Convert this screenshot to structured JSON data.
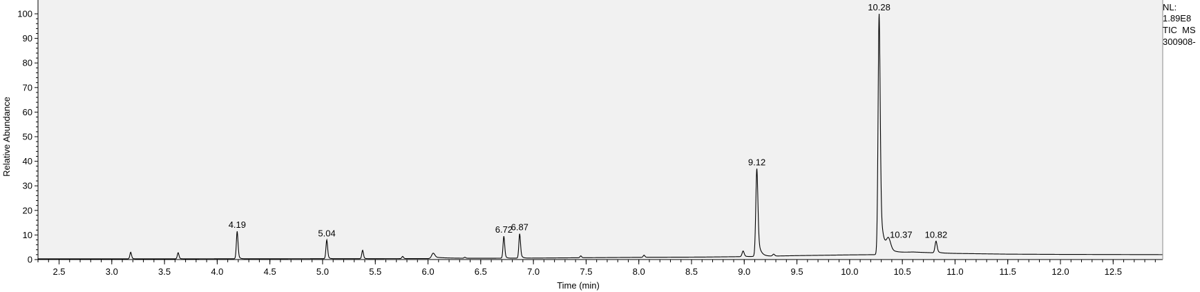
{
  "header": {
    "lines": [
      "NL:",
      "1.89E8",
      "TIC  MS",
      "300908-"
    ]
  },
  "chart_data": {
    "type": "line",
    "xlabel": "Time (min)",
    "ylabel": "Relative Abundance",
    "xlim": [
      2.3,
      12.97
    ],
    "ylim": [
      0,
      100
    ],
    "grid": false,
    "x_ticks": [
      "2.5",
      "3.0",
      "3.5",
      "4.0",
      "4.5",
      "5.0",
      "5.5",
      "6.0",
      "6.5",
      "7.0",
      "7.5",
      "8.0",
      "8.5",
      "9.0",
      "9.5",
      "10.0",
      "10.5",
      "11.0",
      "11.5",
      "12.0",
      "12.5"
    ],
    "y_ticks": [
      "0",
      "10",
      "20",
      "30",
      "40",
      "50",
      "60",
      "70",
      "80",
      "90",
      "100"
    ],
    "baseline": [
      [
        2.3,
        0.3
      ],
      [
        3.5,
        0.3
      ],
      [
        6.0,
        0.4
      ],
      [
        6.2,
        0.5
      ],
      [
        7.0,
        0.6
      ],
      [
        8.0,
        0.9
      ],
      [
        8.6,
        1.0
      ],
      [
        9.0,
        1.2
      ],
      [
        9.5,
        1.6
      ],
      [
        10.0,
        1.9
      ],
      [
        10.25,
        2.0
      ],
      [
        10.6,
        3.0
      ],
      [
        11.0,
        2.5
      ],
      [
        11.5,
        2.2
      ],
      [
        12.0,
        2.1
      ],
      [
        12.97,
        2.0
      ]
    ],
    "peaks": [
      {
        "x": 3.18,
        "y": 3.0,
        "w": 0.008,
        "tail": 0.01
      },
      {
        "x": 3.63,
        "y": 2.8,
        "w": 0.008,
        "tail": 0.01
      },
      {
        "x": 4.19,
        "y": 11.5,
        "w": 0.008,
        "tail": 0.012,
        "label": "4.19"
      },
      {
        "x": 5.04,
        "y": 8.0,
        "w": 0.008,
        "tail": 0.012,
        "label": "5.04"
      },
      {
        "x": 5.38,
        "y": 3.8,
        "w": 0.008,
        "tail": 0.01
      },
      {
        "x": 5.76,
        "y": 1.3,
        "w": 0.008,
        "tail": 0.01
      },
      {
        "x": 6.05,
        "y": 2.6,
        "w": 0.015,
        "tail": 0.1
      },
      {
        "x": 6.35,
        "y": 0.9,
        "w": 0.008,
        "tail": 0.01
      },
      {
        "x": 6.72,
        "y": 9.5,
        "w": 0.008,
        "tail": 0.012,
        "label": "6.72"
      },
      {
        "x": 6.87,
        "y": 10.5,
        "w": 0.008,
        "tail": 0.015,
        "label": "6.87"
      },
      {
        "x": 7.45,
        "y": 1.5,
        "w": 0.008,
        "tail": 0.01
      },
      {
        "x": 8.05,
        "y": 1.8,
        "w": 0.008,
        "tail": 0.01
      },
      {
        "x": 8.99,
        "y": 3.5,
        "w": 0.01,
        "tail": 0.015
      },
      {
        "x": 9.12,
        "y": 37.0,
        "w": 0.01,
        "tail": 0.025,
        "label": "9.12"
      },
      {
        "x": 9.28,
        "y": 2.2,
        "w": 0.01,
        "tail": 0.01
      },
      {
        "x": 10.28,
        "y": 100.0,
        "w": 0.01,
        "tail": 0.03,
        "label": "10.28"
      },
      {
        "x": 10.37,
        "y": 7.5,
        "w": 0.02,
        "tail": 0.08,
        "label": "10.37",
        "label_dx": 18
      },
      {
        "x": 10.82,
        "y": 7.5,
        "w": 0.01,
        "tail": 0.02,
        "label": "10.82"
      }
    ]
  }
}
